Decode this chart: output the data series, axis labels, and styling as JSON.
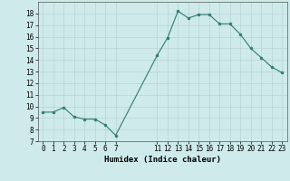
{
  "title": "",
  "xlabel": "Humidex (Indice chaleur)",
  "x_values": [
    0,
    1,
    2,
    3,
    4,
    5,
    6,
    7,
    11,
    12,
    13,
    14,
    15,
    16,
    17,
    18,
    19,
    20,
    21,
    22,
    23
  ],
  "y_values": [
    9.5,
    9.5,
    9.9,
    9.1,
    8.9,
    8.9,
    8.4,
    7.5,
    14.4,
    15.9,
    18.2,
    17.6,
    17.9,
    17.9,
    17.1,
    17.1,
    16.2,
    15.0,
    14.2,
    13.4,
    12.9
  ],
  "line_color": "#2e7d6e",
  "marker": "o",
  "marker_size": 2,
  "bg_color": "#ceeaea",
  "grid_color": "#b8d4d4",
  "ylim": [
    7,
    19
  ],
  "yticks": [
    7,
    8,
    9,
    10,
    11,
    12,
    13,
    14,
    15,
    16,
    17,
    18
  ],
  "xticks": [
    0,
    1,
    2,
    3,
    4,
    5,
    6,
    7,
    11,
    12,
    13,
    14,
    15,
    16,
    17,
    18,
    19,
    20,
    21,
    22,
    23
  ],
  "tick_fontsize": 5.5,
  "xlabel_fontsize": 6.5
}
